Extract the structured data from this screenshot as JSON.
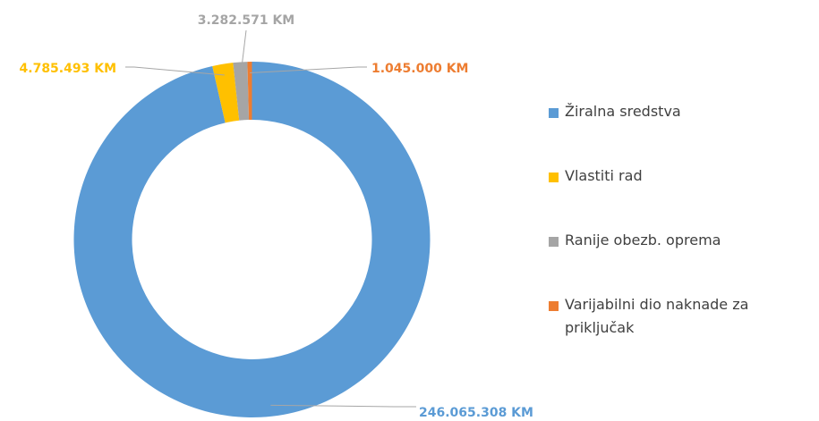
{
  "chart_data": {
    "type": "pie",
    "categories": [
      "Žiralna sredstva",
      "Vlastiti rad",
      "Ranije obezb. oprema",
      "Varijabilni dio naknade za priključak"
    ],
    "values": [
      246065308,
      4785493,
      3282571,
      1045000
    ],
    "value_labels": [
      "246.065.308 KM",
      "4.785.493 KM",
      "3.282.571 KM",
      "1.045.000 KM"
    ],
    "colors": [
      "#5b9bd5",
      "#ffc000",
      "#a5a5a5",
      "#ed7d31"
    ],
    "legend": "right"
  }
}
